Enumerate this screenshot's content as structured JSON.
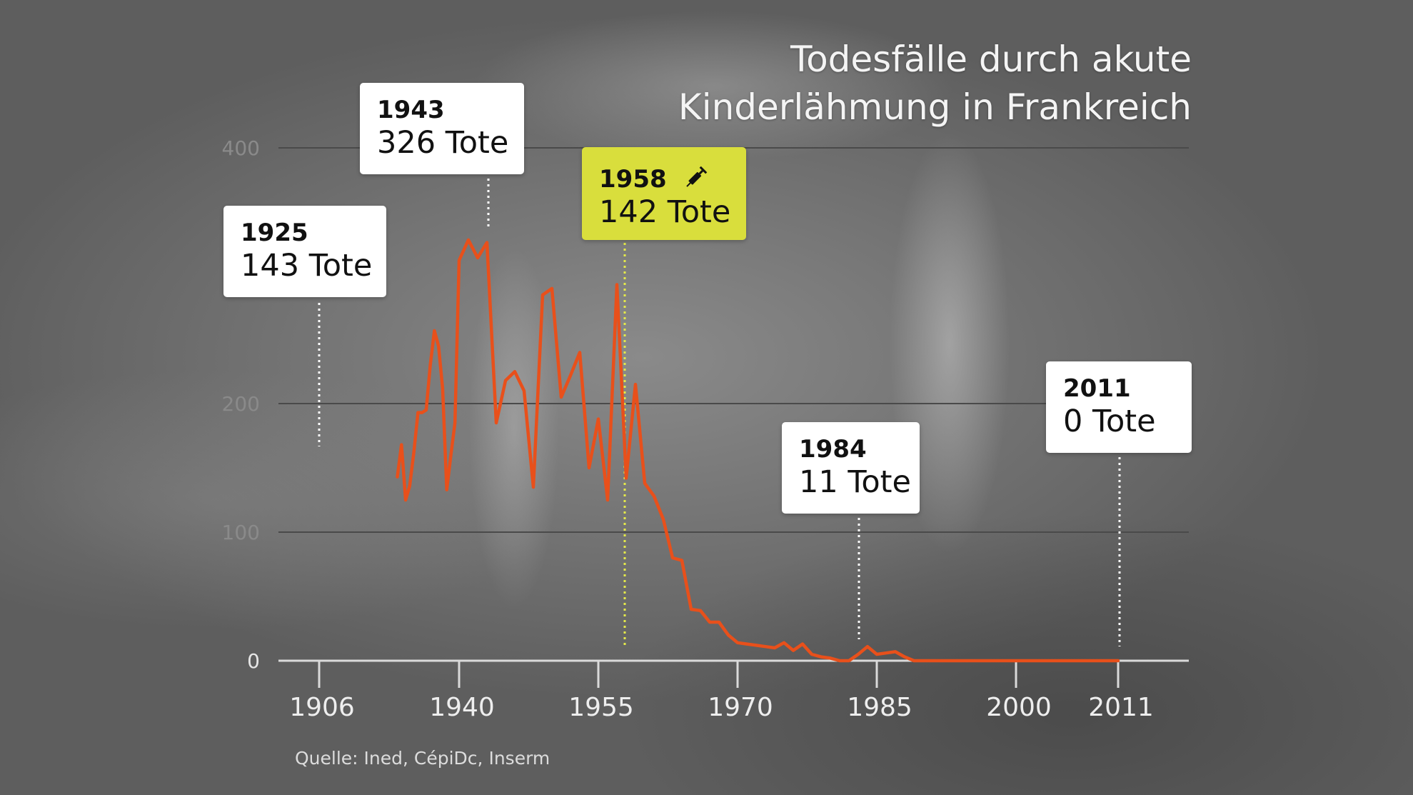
{
  "title_lines": [
    "Todesfälle durch akute",
    "Kinderlähmung in Frankreich"
  ],
  "source": "Quelle: Ined, CépiDc, Inserm",
  "colors": {
    "line": "#e8501b",
    "highlight_box": "#d9de3c",
    "highlight_leader": "#e4e94a",
    "grid": "#4a4a4a",
    "axis": "#dadada"
  },
  "annotations": [
    {
      "year_label": "1925",
      "value_label": "143 Tote",
      "year": 1925,
      "highlight": false,
      "icon": ""
    },
    {
      "year_label": "1943",
      "value_label": "326 Tote",
      "year": 1943,
      "highlight": false,
      "icon": ""
    },
    {
      "year_label": "1958",
      "value_label": "142 Tote",
      "year": 1958,
      "highlight": true,
      "icon": "syringe-icon"
    },
    {
      "year_label": "1984",
      "value_label": "11 Tote",
      "year": 1984,
      "highlight": false,
      "icon": ""
    },
    {
      "year_label": "2011",
      "value_label": "0 Tote",
      "year": 2011,
      "highlight": false,
      "icon": ""
    }
  ],
  "chart_data": {
    "type": "line",
    "title": "Todesfälle durch akute Kinderlähmung in Frankreich",
    "xlabel": "",
    "ylabel": "",
    "x_ticks": [
      1906,
      1940,
      1955,
      1970,
      1985,
      2000,
      2011
    ],
    "y_ticks": [
      0,
      100,
      200,
      400
    ],
    "ylim": [
      0,
      400
    ],
    "grid": true,
    "series": [
      {
        "x": [
          1925,
          1926,
          1927,
          1928,
          1929,
          1930,
          1931,
          1932,
          1933,
          1934,
          1935,
          1936,
          1937,
          1938,
          1939,
          1940,
          1941,
          1942,
          1943,
          1944,
          1945,
          1946,
          1947,
          1948,
          1949,
          1950,
          1951,
          1952,
          1953,
          1954,
          1955,
          1956,
          1957,
          1958,
          1959,
          1960,
          1961,
          1962,
          1963,
          1964,
          1965,
          1966,
          1967,
          1968,
          1969,
          1970,
          1971,
          1972,
          1973,
          1974,
          1975,
          1976,
          1977,
          1978,
          1979,
          1980,
          1981,
          1982,
          1983,
          1984,
          1985,
          1986,
          1987,
          1988,
          1989,
          1990,
          1991,
          1992,
          1993,
          1994,
          1995,
          1996,
          1997,
          1998,
          1999,
          2000,
          2001,
          2002,
          2003,
          2004,
          2005,
          2006,
          2007,
          2008,
          2009,
          2010,
          2011
        ],
        "values": [
          143,
          168,
          125,
          136,
          162,
          193,
          193,
          195,
          230,
          257,
          245,
          212,
          133,
          160,
          185,
          312,
          328,
          314,
          326,
          185,
          218,
          225,
          210,
          135,
          285,
          290,
          205,
          222,
          240,
          150,
          188,
          125,
          293,
          142,
          215,
          138,
          128,
          110,
          80,
          78,
          40,
          39,
          30,
          30,
          20,
          14,
          13,
          12,
          11,
          10,
          14,
          8,
          13,
          5,
          3,
          2,
          0,
          0,
          5,
          11,
          5,
          6,
          7,
          3,
          0,
          0,
          0,
          0,
          0,
          0,
          0,
          0,
          0,
          0,
          0,
          0,
          0,
          0,
          0,
          0,
          0,
          0,
          0,
          0,
          0,
          0,
          0
        ]
      }
    ]
  }
}
